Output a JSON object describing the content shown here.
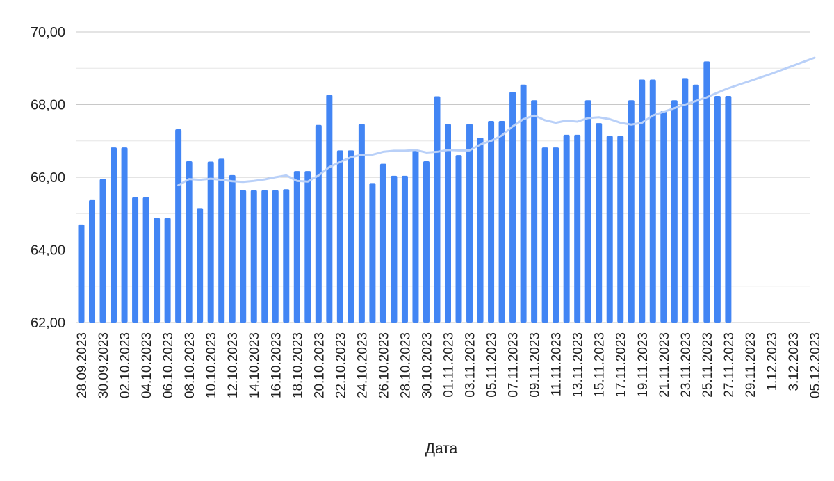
{
  "chart_data": {
    "type": "bar",
    "xlabel": "Дата",
    "ylabel": "",
    "ylim": [
      62,
      70
    ],
    "yticks": [
      62,
      64,
      66,
      68,
      70
    ],
    "ytick_labels": [
      "62,00",
      "64,00",
      "66,00",
      "68,00",
      "70,00"
    ],
    "grid": true,
    "categories": [
      "28.09.2023",
      "29.09.2023",
      "30.09.2023",
      "01.10.2023",
      "02.10.2023",
      "03.10.2023",
      "04.10.2023",
      "05.10.2023",
      "06.10.2023",
      "07.10.2023",
      "08.10.2023",
      "09.10.2023",
      "10.10.2023",
      "11.10.2023",
      "12.10.2023",
      "13.10.2023",
      "14.10.2023",
      "15.10.2023",
      "16.10.2023",
      "17.10.2023",
      "18.10.2023",
      "19.10.2023",
      "20.10.2023",
      "21.10.2023",
      "22.10.2023",
      "23.10.2023",
      "24.10.2023",
      "25.10.2023",
      "26.10.2023",
      "27.10.2023",
      "28.10.2023",
      "29.10.2023",
      "30.10.2023",
      "31.10.2023",
      "01.11.2023",
      "02.11.2023",
      "03.11.2023",
      "04.11.2023",
      "05.11.2023",
      "06.11.2023",
      "07.11.2023",
      "08.11.2023",
      "09.11.2023",
      "10.11.2023",
      "11.11.2023",
      "12.11.2023",
      "13.11.2023",
      "14.11.2023",
      "15.11.2023",
      "16.11.2023",
      "17.11.2023",
      "18.11.2023",
      "19.11.2023",
      "20.11.2023",
      "21.11.2023",
      "22.11.2023",
      "23.11.2023",
      "24.11.2023",
      "25.11.2023",
      "26.11.2023",
      "27.11.2023",
      "28.11.2023",
      "29.11.2023",
      "30.11.2023",
      "1.12.2023",
      "2.12.2023",
      "3.12.2023",
      "4.12.2023",
      "05.12.2023"
    ],
    "tick_labels": [
      "28.09.2023",
      "",
      "30.09.2023",
      "",
      "02.10.2023",
      "",
      "04.10.2023",
      "",
      "06.10.2023",
      "",
      "08.10.2023",
      "",
      "10.10.2023",
      "",
      "12.10.2023",
      "",
      "14.10.2023",
      "",
      "16.10.2023",
      "",
      "18.10.2023",
      "",
      "20.10.2023",
      "",
      "22.10.2023",
      "",
      "24.10.2023",
      "",
      "26.10.2023",
      "",
      "28.10.2023",
      "",
      "30.10.2023",
      "",
      "01.11.2023",
      "",
      "03.11.2023",
      "",
      "05.11.2023",
      "",
      "07.11.2023",
      "",
      "09.11.2023",
      "",
      "11.11.2023",
      "",
      "13.11.2023",
      "",
      "15.11.2023",
      "",
      "17.11.2023",
      "",
      "19.11.2023",
      "",
      "21.11.2023",
      "",
      "23.11.2023",
      "",
      "25.11.2023",
      "",
      "27.11.2023",
      "",
      "29.11.2023",
      "",
      "1.12.2023",
      "",
      "3.12.2023",
      "",
      "05.12.2023"
    ],
    "series": [
      {
        "type": "bar",
        "color": "#4285f4",
        "values": [
          64.7,
          65.37,
          65.95,
          66.82,
          66.82,
          65.45,
          65.45,
          64.88,
          64.88,
          67.32,
          66.44,
          65.15,
          66.43,
          66.51,
          66.06,
          65.64,
          65.64,
          65.64,
          65.64,
          65.67,
          66.17,
          66.17,
          67.44,
          68.27,
          66.74,
          66.74,
          67.47,
          65.84,
          66.37,
          66.04,
          66.04,
          66.76,
          66.44,
          68.23,
          67.47,
          66.61,
          67.47,
          67.09,
          67.55,
          67.55,
          68.35,
          68.55,
          68.12,
          66.82,
          66.82,
          67.17,
          67.17,
          68.12,
          67.49,
          67.14,
          67.14,
          68.12,
          68.69,
          68.69,
          67.82,
          68.12,
          68.73,
          68.55,
          69.19,
          68.24,
          68.24,
          null,
          null,
          null,
          null,
          null,
          null,
          null,
          null
        ]
      },
      {
        "type": "line",
        "color": "#b9d0f8",
        "values": [
          null,
          null,
          null,
          null,
          null,
          null,
          null,
          null,
          null,
          65.78,
          65.95,
          65.93,
          65.96,
          65.93,
          65.89,
          65.87,
          65.9,
          65.94,
          66.0,
          66.05,
          65.9,
          65.88,
          66.05,
          66.28,
          66.42,
          66.55,
          66.62,
          66.62,
          66.7,
          66.73,
          66.73,
          66.75,
          66.68,
          66.7,
          66.75,
          66.74,
          66.74,
          66.9,
          67.0,
          67.15,
          67.4,
          67.6,
          67.7,
          67.57,
          67.5,
          67.56,
          67.53,
          67.63,
          67.65,
          67.6,
          67.5,
          67.45,
          67.5,
          67.7,
          67.8,
          67.9,
          68.0,
          68.1,
          68.2,
          68.33,
          68.45,
          68.55,
          68.65,
          68.75,
          68.85,
          68.96,
          69.07,
          69.18,
          69.29
        ]
      }
    ]
  }
}
